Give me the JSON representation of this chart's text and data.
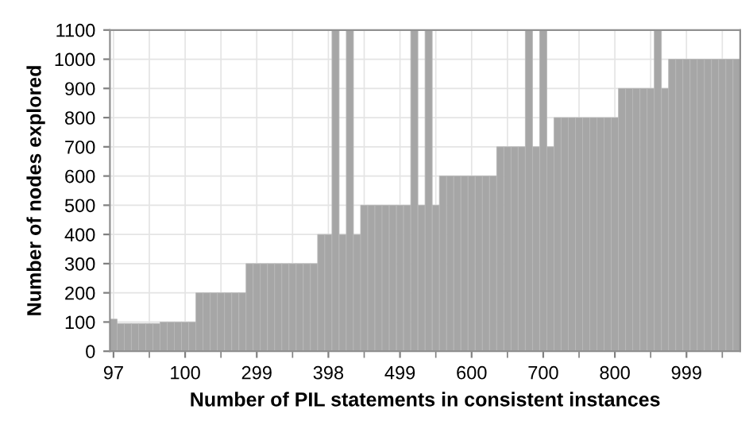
{
  "chart_data": {
    "type": "bar",
    "xlabel": "Number of PIL statements in consistent instances",
    "ylabel": "Number of nodes explored",
    "categories": [
      "97",
      null,
      null,
      null,
      null,
      null,
      null,
      null,
      null,
      null,
      "100",
      null,
      null,
      null,
      null,
      null,
      null,
      null,
      null,
      null,
      "299",
      null,
      null,
      null,
      null,
      null,
      null,
      null,
      null,
      null,
      "398",
      null,
      null,
      null,
      null,
      null,
      null,
      null,
      null,
      null,
      "499",
      null,
      null,
      null,
      null,
      null,
      null,
      null,
      null,
      null,
      "600",
      null,
      null,
      null,
      null,
      null,
      null,
      null,
      null,
      null,
      "700",
      null,
      null,
      null,
      null,
      null,
      null,
      null,
      null,
      null,
      "800",
      null,
      null,
      null,
      null,
      null,
      null,
      null,
      null,
      null,
      "999",
      null,
      null,
      null,
      null,
      null,
      null,
      null
    ],
    "values": [
      110,
      95,
      95,
      95,
      95,
      95,
      95,
      100,
      100,
      100,
      100,
      100,
      200,
      200,
      200,
      200,
      200,
      200,
      200,
      300,
      300,
      300,
      300,
      300,
      300,
      300,
      300,
      300,
      300,
      400,
      400,
      1100,
      400,
      1100,
      400,
      500,
      500,
      500,
      500,
      500,
      500,
      500,
      1100,
      500,
      1100,
      500,
      600,
      600,
      600,
      600,
      600,
      600,
      600,
      600,
      700,
      700,
      700,
      700,
      1100,
      700,
      1100,
      700,
      800,
      800,
      800,
      800,
      800,
      800,
      800,
      800,
      800,
      900,
      900,
      900,
      900,
      900,
      1100,
      900,
      1000,
      1000,
      1000,
      1000,
      1000,
      1000,
      1000,
      1000,
      1000,
      1000
    ],
    "color": "#a6a6a6",
    "ylim": [
      0,
      1100
    ],
    "yticks": [
      0,
      100,
      200,
      300,
      400,
      500,
      600,
      700,
      800,
      900,
      1000,
      1100
    ],
    "grid": true
  }
}
